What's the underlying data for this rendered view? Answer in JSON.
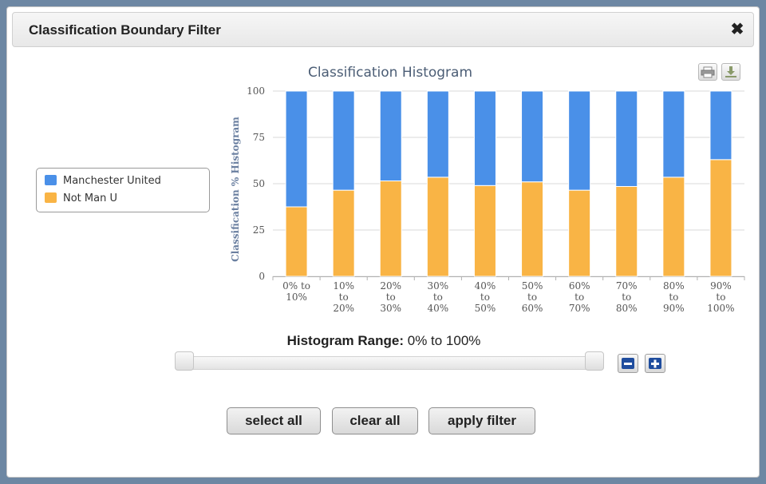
{
  "dialog": {
    "title": "Classification Boundary Filter",
    "close_icon": "close-icon"
  },
  "legend": {
    "items": [
      {
        "label": "Manchester United",
        "color": "#4a90e8"
      },
      {
        "label": "Not Man U",
        "color": "#f9b445"
      }
    ]
  },
  "chart_data": {
    "type": "bar",
    "stacked": true,
    "title": "Classification Histogram",
    "ylabel": "Classification % Histogram",
    "xlabel": "",
    "ylim": [
      0,
      100
    ],
    "yticks": [
      "0",
      "25",
      "50",
      "75",
      "100"
    ],
    "grid": true,
    "categories": [
      [
        "0% to",
        "10%"
      ],
      [
        "10%",
        "to",
        "20%"
      ],
      [
        "20%",
        "to",
        "30%"
      ],
      [
        "30%",
        "to",
        "40%"
      ],
      [
        "40%",
        "to",
        "50%"
      ],
      [
        "50%",
        "to",
        "60%"
      ],
      [
        "60%",
        "to",
        "70%"
      ],
      [
        "70%",
        "to",
        "80%"
      ],
      [
        "80%",
        "to",
        "90%"
      ],
      [
        "90%",
        "to",
        "100%"
      ]
    ],
    "series": [
      {
        "name": "Not Man U",
        "color": "#f9b445",
        "values": [
          37.5,
          46.5,
          51.5,
          53.5,
          49,
          51,
          46.5,
          48.5,
          53.5,
          63
        ]
      },
      {
        "name": "Manchester United",
        "color": "#4a90e8",
        "values": [
          62.5,
          53.5,
          48.5,
          46.5,
          51,
          49,
          53.5,
          51.5,
          46.5,
          37
        ]
      }
    ],
    "export_icons": [
      "print-icon",
      "download-icon"
    ]
  },
  "range": {
    "label": "Histogram Range:",
    "value": "0% to 100%",
    "min_percent": 0,
    "max_percent": 100
  },
  "steppers": {
    "minus_icon": "minus-icon",
    "plus_icon": "plus-icon"
  },
  "buttons": {
    "select_all": "select all",
    "clear_all": "clear all",
    "apply_filter": "apply filter"
  }
}
